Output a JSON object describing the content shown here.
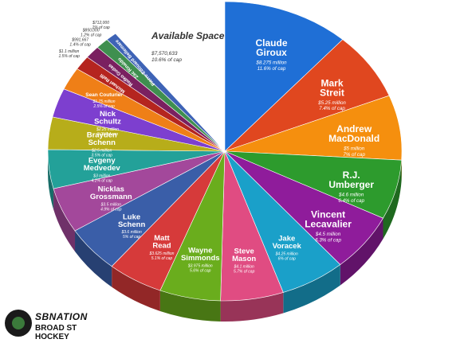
{
  "chart_data": {
    "type": "pie",
    "title": "",
    "cap_basis": "share of cap",
    "slices": [
      {
        "name": "Claude Giroux",
        "salary": "$8.275 million",
        "cap": "11.6% of cap",
        "value": 8.275,
        "color": "#1f6fd6"
      },
      {
        "name": "Mark Streit",
        "salary": "$5.25 million",
        "cap": "7.4% of cap",
        "value": 5.25,
        "color": "#e0471f"
      },
      {
        "name": "Andrew MacDonald",
        "salary": "$5 million",
        "cap": "7% of cap",
        "value": 5.0,
        "color": "#f58f0e"
      },
      {
        "name": "R.J. Umberger",
        "salary": "$4.6 million",
        "cap": "6.4% of cap",
        "value": 4.6,
        "color": "#2d9b2d"
      },
      {
        "name": "Vincent Lecavalier",
        "salary": "$4.5 million",
        "cap": "6.3% of cap",
        "value": 4.5,
        "color": "#8f1c9b"
      },
      {
        "name": "Jake Voracek",
        "salary": "$4.25 million",
        "cap": "6% of cap",
        "value": 4.25,
        "color": "#1aa0c9"
      },
      {
        "name": "Steve Mason",
        "salary": "$4.1 million",
        "cap": "5.7% of cap",
        "value": 4.1,
        "color": "#e04c82"
      },
      {
        "name": "Wayne Simmonds",
        "salary": "$3.975 million",
        "cap": "5.6% of cap",
        "value": 3.975,
        "color": "#6aad1d"
      },
      {
        "name": "Matt Read",
        "salary": "$3.625 million",
        "cap": "5.1% of cap",
        "value": 3.625,
        "color": "#d63a3a"
      },
      {
        "name": "Luke Schenn",
        "salary": "$3.6 million",
        "cap": "5% of cap",
        "value": 3.6,
        "color": "#3a5ea8"
      },
      {
        "name": "Nicklas Grossmann",
        "salary": "$3.5 million",
        "cap": "4.9% of cap",
        "value": 3.5,
        "color": "#a3489b"
      },
      {
        "name": "Evgeny Medvedev",
        "salary": "$3 million",
        "cap": "4.2% of cap",
        "value": 3.0,
        "color": "#23a199"
      },
      {
        "name": "Brayden Schenn",
        "salary": "$2.5 million",
        "cap": "3.5% of cap",
        "value": 2.5,
        "color": "#b7ad1a"
      },
      {
        "name": "Nick Schultz",
        "salary": "$2.25 million",
        "cap": "3.2% of cap",
        "value": 2.25,
        "color": "#7d3fcf"
      },
      {
        "name": "Sean Couturier",
        "salary": "$1.75 million",
        "cap": "2.5% of cap",
        "value": 1.75,
        "color": "#ef7f17"
      },
      {
        "name": "Michael Raffl",
        "salary": "$1.1 million",
        "cap": "1.5% of cap",
        "value": 1.1,
        "color": "#b5251f"
      },
      {
        "name": "Radko Gudas",
        "salary": "$991,667",
        "cap": "1.4% of cap",
        "value": 0.991667,
        "color": "#7a2060"
      },
      {
        "name": "Zac Rinaldo",
        "salary": "$850,000",
        "cap": "1.2% of cap",
        "value": 0.85,
        "color": "#3f8f4f"
      },
      {
        "name": "Pierre-Edouard Bellemare",
        "salary": "$712,000",
        "cap": "1% of cap",
        "value": 0.712,
        "color": "#3e63b6"
      }
    ],
    "available": {
      "label": "Available Space",
      "salary": "$7,570,633",
      "cap": "10.6% of cap",
      "value": 7.570633
    }
  },
  "branding": {
    "line1": "SBNATION",
    "line2": "BROAD ST HOCKEY"
  }
}
